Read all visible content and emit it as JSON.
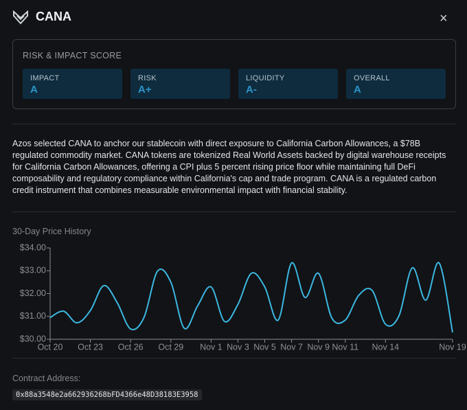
{
  "header": {
    "title": "CANA",
    "close": "×"
  },
  "score": {
    "title": "RISK & IMPACT SCORE",
    "items": [
      {
        "label": "IMPACT",
        "value": "A"
      },
      {
        "label": "RISK",
        "value": "A+"
      },
      {
        "label": "LIQUIDITY",
        "value": "A-"
      },
      {
        "label": "OVERALL",
        "value": "A"
      }
    ]
  },
  "description": "Azos selected CANA to anchor our stablecoin with direct exposure to California Carbon Allowances, a $78B regulated commodity market. CANA tokens are tokenized Real World Assets backed by digital warehouse receipts for California Carbon Allowances, offering a CPI plus 5 percent rising price floor while maintaining full DeFi composability and regulatory compliance within California's cap and trade program. CANA is a regulated carbon credit instrument that combines measurable environmental impact with financial stability.",
  "chart_data": {
    "type": "line",
    "title": "30-Day Price History",
    "x": [
      "Oct 20",
      "Oct 21",
      "Oct 22",
      "Oct 23",
      "Oct 24",
      "Oct 25",
      "Oct 26",
      "Oct 27",
      "Oct 28",
      "Oct 29",
      "Oct 30",
      "Oct 31",
      "Nov 1",
      "Nov 2",
      "Nov 3",
      "Nov 4",
      "Nov 5",
      "Nov 6",
      "Nov 7",
      "Nov 8",
      "Nov 9",
      "Nov 10",
      "Nov 11",
      "Nov 12",
      "Nov 13",
      "Nov 14",
      "Nov 15",
      "Nov 16",
      "Nov 17",
      "Nov 18",
      "Nov 19"
    ],
    "values": [
      30.95,
      31.23,
      30.72,
      31.26,
      32.35,
      31.6,
      30.45,
      30.96,
      32.98,
      32.5,
      30.48,
      31.47,
      32.29,
      30.78,
      31.53,
      32.89,
      32.29,
      30.84,
      33.34,
      31.83,
      32.89,
      30.93,
      30.84,
      31.92,
      32.14,
      30.66,
      31.02,
      33.13,
      31.71,
      33.34,
      30.3
    ],
    "color": "#3bb8e3",
    "ylim": [
      30,
      34
    ],
    "yticks": [
      {
        "value": 30,
        "label": "$30.00"
      },
      {
        "value": 31,
        "label": "$31.00"
      },
      {
        "value": 32,
        "label": "$32.00"
      },
      {
        "value": 33,
        "label": "$33.00"
      },
      {
        "value": 34,
        "label": "$34.00"
      }
    ],
    "xticks": [
      "Oct 20",
      "Oct 23",
      "Oct 26",
      "Oct 29",
      "Nov 1",
      "Nov 3",
      "Nov 5",
      "Nov 7",
      "Nov 9",
      "Nov 11",
      "Nov 14",
      "Nov 19"
    ]
  },
  "contract": {
    "label": "Contract Address:",
    "address": "0x88a3548e2a662936268bFD4366e48D38183E3958"
  }
}
